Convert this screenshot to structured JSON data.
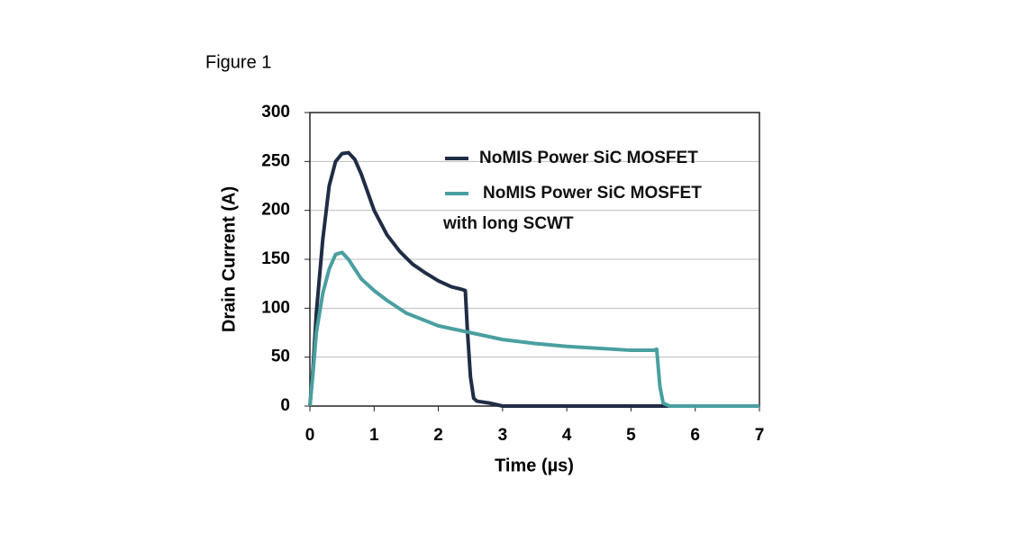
{
  "figure_label": "Figure 1",
  "chart_data": {
    "type": "line",
    "xlabel": "Time (µs)",
    "ylabel": "Drain Current (A)",
    "xlim": [
      0,
      7
    ],
    "xticks": [
      0,
      1,
      2,
      3,
      4,
      5,
      6,
      7
    ],
    "ylim": [
      0,
      300
    ],
    "yticks": [
      0,
      50,
      100,
      150,
      200,
      250,
      300
    ],
    "grid": true,
    "legend": "upper right",
    "series": [
      {
        "name": "NoMIS Power SiC MOSFET",
        "color": "#1f2d45",
        "x": [
          0,
          0.05,
          0.1,
          0.2,
          0.3,
          0.4,
          0.5,
          0.6,
          0.7,
          0.8,
          1.0,
          1.2,
          1.4,
          1.6,
          1.8,
          2.0,
          2.2,
          2.38,
          2.42,
          2.45,
          2.5,
          2.55,
          2.6,
          2.8,
          3.0,
          7.0
        ],
        "values": [
          0,
          40,
          95,
          170,
          225,
          250,
          258,
          259,
          252,
          237,
          200,
          175,
          158,
          145,
          136,
          128,
          122,
          119,
          118,
          80,
          30,
          8,
          5,
          3,
          0,
          0
        ]
      },
      {
        "name": "NoMIS Power SiC MOSFET with long SCWT",
        "color": "#4a9fa0",
        "x": [
          0,
          0.05,
          0.1,
          0.2,
          0.3,
          0.4,
          0.5,
          0.6,
          0.8,
          1.0,
          1.2,
          1.5,
          2.0,
          2.5,
          3.0,
          3.5,
          4.0,
          4.5,
          5.0,
          5.35,
          5.4,
          5.45,
          5.5,
          5.6,
          7.0
        ],
        "values": [
          0,
          35,
          75,
          115,
          140,
          155,
          157,
          150,
          130,
          118,
          108,
          95,
          82,
          75,
          68,
          64,
          61,
          59,
          57,
          57,
          58,
          20,
          3,
          0,
          0
        ]
      }
    ]
  }
}
